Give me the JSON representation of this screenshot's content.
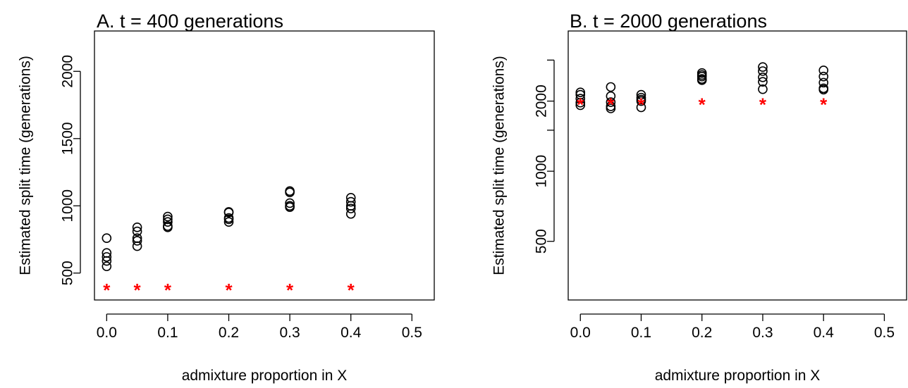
{
  "chart_data": [
    {
      "type": "scatter",
      "title": "A. t = 400 generations",
      "xlabel": "admixture proportion in X",
      "ylabel": "Estimated split time (generations)",
      "xlim": [
        0,
        0.5
      ],
      "ylim": [
        300,
        2300
      ],
      "x_ticks": [
        "0.0",
        "0.1",
        "0.2",
        "0.3",
        "0.4",
        "0.5"
      ],
      "x_tick_values": [
        0,
        0.1,
        0.2,
        0.3,
        0.4,
        0.5
      ],
      "y_ticks": [
        "500",
        "1000",
        "1500",
        "2000"
      ],
      "y_tick_values": [
        500,
        1000,
        1500,
        2000
      ],
      "y_scale": "linear",
      "true_value": 400,
      "true_marker": "*",
      "true_color": "#ff0000",
      "estimate_marker": "open-circle",
      "estimate_color": "#000000",
      "x": [
        0,
        0.05,
        0.1,
        0.2,
        0.3,
        0.4
      ],
      "estimates": [
        [
          550,
          590,
          620,
          650,
          760
        ],
        [
          700,
          740,
          760,
          810,
          840
        ],
        [
          840,
          850,
          880,
          900,
          920
        ],
        [
          880,
          900,
          910,
          950,
          955
        ],
        [
          990,
          1000,
          1020,
          1100,
          1110
        ],
        [
          940,
          980,
          1000,
          1030,
          1060
        ]
      ]
    },
    {
      "type": "scatter",
      "title": "B. t = 2000 generations",
      "xlabel": "admixture proportion in X",
      "ylabel": "Estimated split time (generations)",
      "xlim": [
        0,
        0.5
      ],
      "ylim": [
        280,
        4000
      ],
      "x_ticks": [
        "0.0",
        "0.1",
        "0.2",
        "0.3",
        "0.4",
        "0.5"
      ],
      "x_tick_values": [
        0,
        0.1,
        0.2,
        0.3,
        0.4,
        0.5
      ],
      "y_ticks": [
        "500",
        "1000",
        "",
        "2000",
        ""
      ],
      "y_tick_values": [
        500,
        1000,
        1500,
        2000,
        3000
      ],
      "y_scale": "log",
      "true_value": 2000,
      "true_marker": "*",
      "true_color": "#ff0000",
      "estimate_marker": "open-circle",
      "estimate_color": "#000000",
      "x": [
        0,
        0.05,
        0.1,
        0.2,
        0.3,
        0.4
      ],
      "estimates": [
        [
          1920,
          1970,
          2050,
          2130,
          2180
        ],
        [
          1860,
          1900,
          1980,
          2100,
          2300
        ],
        [
          1880,
          2000,
          2030,
          2070,
          2130
        ],
        [
          2460,
          2490,
          2550,
          2590,
          2640
        ],
        [
          2250,
          2420,
          2530,
          2690,
          2800
        ],
        [
          2240,
          2270,
          2400,
          2550,
          2710
        ]
      ]
    }
  ]
}
